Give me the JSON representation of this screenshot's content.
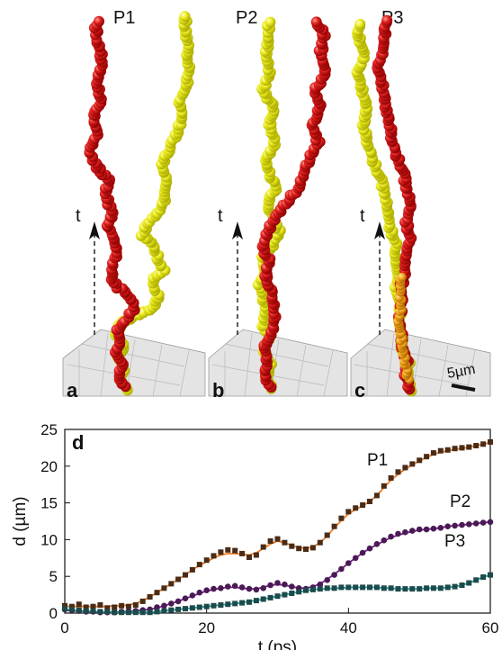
{
  "panels": [
    {
      "letter": "a",
      "particle": "P1"
    },
    {
      "letter": "b",
      "particle": "P2"
    },
    {
      "letter": "c",
      "particle": "P3"
    }
  ],
  "time_arrow_label": "t",
  "scale_bar_label": "5µm",
  "colors": {
    "red": "#d80f0f",
    "yellow": "#e8e81e",
    "floor": "#e4e4e4",
    "p1_line": "#f07a20",
    "p1_points": "#4a2c16",
    "p2_line": "#7a1f8a",
    "p2_points": "#4a1a55",
    "p3_line": "#1aa6a6",
    "p3_points": "#1f4a4a"
  },
  "chart_data": {
    "type": "scatter",
    "panel_letter": "d",
    "xlabel": "t (ps)",
    "ylabel": "d (µm)",
    "xlim": [
      0,
      60
    ],
    "ylim": [
      0,
      25
    ],
    "xticks": [
      0,
      20,
      40,
      60
    ],
    "yticks": [
      0,
      5,
      10,
      15,
      20,
      25
    ],
    "series": [
      {
        "name": "P1",
        "x": [
          0,
          1,
          2,
          3,
          4,
          5,
          6,
          7,
          8,
          9,
          10,
          11,
          12,
          13,
          14,
          15,
          16,
          17,
          18,
          19,
          20,
          21,
          22,
          23,
          24,
          25,
          26,
          27,
          28,
          29,
          30,
          31,
          32,
          33,
          34,
          35,
          36,
          37,
          38,
          39,
          40,
          41,
          42,
          43,
          44,
          45,
          46,
          47,
          48,
          49,
          50,
          51,
          52,
          53,
          54,
          55,
          56,
          57,
          58,
          59,
          60
        ],
        "y": [
          1.0,
          0.9,
          1.2,
          0.8,
          0.9,
          1.1,
          0.7,
          0.8,
          1.0,
          0.9,
          1.1,
          1.6,
          2.2,
          2.8,
          3.4,
          4.0,
          4.6,
          5.2,
          5.9,
          6.6,
          7.2,
          7.8,
          8.3,
          8.6,
          8.5,
          8.1,
          7.6,
          7.9,
          9.0,
          9.8,
          10.1,
          9.6,
          9.1,
          8.8,
          8.7,
          8.9,
          9.6,
          10.6,
          11.8,
          12.9,
          13.8,
          14.3,
          14.7,
          15.2,
          16.0,
          17.3,
          18.4,
          19.2,
          19.8,
          20.3,
          20.8,
          21.3,
          21.8,
          22.1,
          22.2,
          22.4,
          22.5,
          22.6,
          22.8,
          23.0,
          23.3
        ],
        "fit_y": [
          0.9,
          0.9,
          0.9,
          0.9,
          0.9,
          0.9,
          0.9,
          1.0,
          1.0,
          1.1,
          1.3,
          1.7,
          2.2,
          2.8,
          3.4,
          4.0,
          4.6,
          5.2,
          5.9,
          6.5,
          7.0,
          7.5,
          7.9,
          8.1,
          8.1,
          8.0,
          7.9,
          8.2,
          8.8,
          9.4,
          9.8,
          9.6,
          9.2,
          8.9,
          8.8,
          9.0,
          9.6,
          10.5,
          11.6,
          12.6,
          13.5,
          14.1,
          14.6,
          15.2,
          16.0,
          17.1,
          18.1,
          18.9,
          19.6,
          20.2,
          20.7,
          21.2,
          21.6,
          21.9,
          22.1,
          22.3,
          22.4,
          22.6,
          22.8,
          23.0,
          23.2
        ]
      },
      {
        "name": "P2",
        "x": [
          0,
          1,
          2,
          3,
          4,
          5,
          6,
          7,
          8,
          9,
          10,
          11,
          12,
          13,
          14,
          15,
          16,
          17,
          18,
          19,
          20,
          21,
          22,
          23,
          24,
          25,
          26,
          27,
          28,
          29,
          30,
          31,
          32,
          33,
          34,
          35,
          36,
          37,
          38,
          39,
          40,
          41,
          42,
          43,
          44,
          45,
          46,
          47,
          48,
          49,
          50,
          51,
          52,
          53,
          54,
          55,
          56,
          57,
          58,
          59,
          60
        ],
        "y": [
          0.5,
          0.4,
          0.3,
          0.2,
          0.2,
          0.1,
          0.1,
          0.1,
          0.2,
          0.2,
          0.3,
          0.4,
          0.5,
          0.8,
          1.0,
          1.3,
          1.6,
          2.0,
          2.4,
          2.8,
          3.1,
          3.3,
          3.4,
          3.6,
          3.7,
          3.5,
          3.3,
          3.2,
          3.4,
          3.8,
          4.1,
          3.9,
          3.6,
          3.4,
          3.3,
          3.5,
          3.9,
          4.5,
          5.2,
          6.0,
          6.8,
          7.5,
          8.2,
          8.8,
          9.4,
          9.9,
          10.4,
          10.8,
          11.0,
          11.2,
          11.4,
          11.4,
          11.5,
          11.6,
          11.8,
          11.9,
          12.0,
          12.1,
          12.2,
          12.3,
          12.4
        ],
        "fit_y": [
          0.4,
          0.3,
          0.3,
          0.2,
          0.2,
          0.1,
          0.1,
          0.1,
          0.2,
          0.2,
          0.3,
          0.4,
          0.5,
          0.7,
          1.0,
          1.3,
          1.6,
          2.0,
          2.3,
          2.7,
          3.0,
          3.2,
          3.4,
          3.5,
          3.5,
          3.4,
          3.3,
          3.3,
          3.5,
          3.8,
          3.9,
          3.8,
          3.6,
          3.4,
          3.4,
          3.6,
          4.0,
          4.6,
          5.3,
          6.0,
          6.8,
          7.5,
          8.2,
          8.8,
          9.3,
          9.8,
          10.3,
          10.6,
          10.9,
          11.1,
          11.3,
          11.4,
          11.5,
          11.6,
          11.8,
          11.9,
          12.0,
          12.1,
          12.2,
          12.3,
          12.4
        ]
      },
      {
        "name": "P3",
        "x": [
          0,
          1,
          2,
          3,
          4,
          5,
          6,
          7,
          8,
          9,
          10,
          11,
          12,
          13,
          14,
          15,
          16,
          17,
          18,
          19,
          20,
          21,
          22,
          23,
          24,
          25,
          26,
          27,
          28,
          29,
          30,
          31,
          32,
          33,
          34,
          35,
          36,
          37,
          38,
          39,
          40,
          41,
          42,
          43,
          44,
          45,
          46,
          47,
          48,
          49,
          50,
          51,
          52,
          53,
          54,
          55,
          56,
          57,
          58,
          59,
          60
        ],
        "y": [
          0.6,
          0.5,
          0.4,
          0.3,
          0.3,
          0.2,
          0.2,
          0.1,
          0.1,
          0.1,
          0.1,
          0.1,
          0.1,
          0.2,
          0.3,
          0.4,
          0.5,
          0.6,
          0.7,
          0.8,
          0.9,
          1.0,
          1.1,
          1.2,
          1.3,
          1.4,
          1.5,
          1.7,
          1.9,
          2.1,
          2.3,
          2.5,
          2.7,
          2.9,
          3.1,
          3.2,
          3.3,
          3.4,
          3.4,
          3.5,
          3.5,
          3.5,
          3.5,
          3.5,
          3.5,
          3.4,
          3.4,
          3.3,
          3.3,
          3.3,
          3.3,
          3.4,
          3.4,
          3.4,
          3.5,
          3.6,
          3.8,
          4.1,
          4.5,
          4.9,
          5.2
        ],
        "fit_y": [
          0.5,
          0.4,
          0.3,
          0.3,
          0.2,
          0.2,
          0.1,
          0.1,
          0.1,
          0.1,
          0.1,
          0.1,
          0.1,
          0.2,
          0.3,
          0.4,
          0.5,
          0.6,
          0.7,
          0.8,
          0.9,
          1.0,
          1.1,
          1.2,
          1.3,
          1.4,
          1.6,
          1.7,
          1.9,
          2.1,
          2.3,
          2.5,
          2.7,
          2.9,
          3.0,
          3.2,
          3.3,
          3.3,
          3.4,
          3.4,
          3.5,
          3.5,
          3.5,
          3.5,
          3.5,
          3.4,
          3.4,
          3.3,
          3.3,
          3.3,
          3.3,
          3.4,
          3.4,
          3.4,
          3.5,
          3.6,
          3.8,
          4.1,
          4.5,
          4.9,
          5.2
        ]
      }
    ]
  }
}
